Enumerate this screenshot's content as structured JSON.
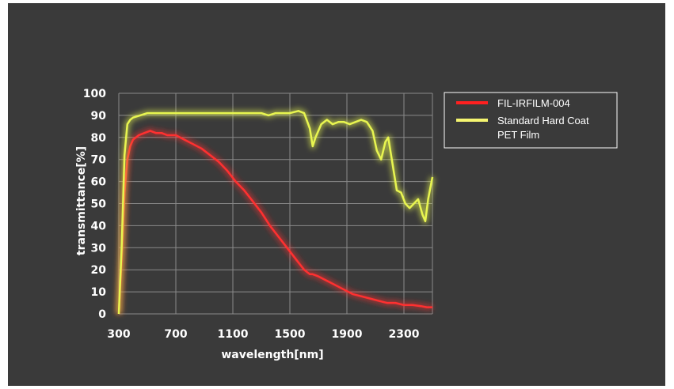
{
  "chart_data": {
    "type": "line",
    "title": "",
    "xlabel": "wavelength[nm]",
    "ylabel": "transmittance[%]",
    "xlim": [
      300,
      2500
    ],
    "ylim": [
      0,
      100
    ],
    "xticks": [
      300,
      700,
      1100,
      1500,
      1900,
      2300
    ],
    "yticks": [
      0,
      10,
      20,
      30,
      40,
      50,
      60,
      70,
      80,
      90,
      100
    ],
    "grid": true,
    "legend_position": "right",
    "series": [
      {
        "name": "FIL-IRFILM-004",
        "color": "#ff3030",
        "x": [
          300,
          320,
          340,
          360,
          380,
          400,
          440,
          480,
          520,
          560,
          600,
          640,
          700,
          760,
          820,
          880,
          940,
          1000,
          1060,
          1120,
          1180,
          1240,
          1300,
          1360,
          1420,
          1480,
          1540,
          1600,
          1640,
          1660,
          1700,
          1760,
          1820,
          1880,
          1940,
          2000,
          2060,
          2120,
          2180,
          2240,
          2300,
          2360,
          2420,
          2460,
          2500
        ],
        "y": [
          0,
          25,
          55,
          70,
          76,
          79,
          81,
          82,
          83,
          82,
          82,
          81,
          81,
          79,
          77,
          75,
          72,
          69,
          65,
          60,
          56,
          51,
          46,
          40,
          35,
          30,
          25,
          20,
          18,
          18,
          17,
          15,
          13,
          11,
          9,
          8,
          7,
          6,
          5,
          5,
          4,
          4,
          3.5,
          3,
          3
        ]
      },
      {
        "name": "Standard Hard Coat PET Film",
        "color": "#e8f550",
        "x": [
          300,
          320,
          340,
          360,
          380,
          400,
          450,
          500,
          600,
          700,
          800,
          900,
          1000,
          1100,
          1200,
          1300,
          1350,
          1400,
          1450,
          1500,
          1560,
          1600,
          1640,
          1660,
          1680,
          1720,
          1760,
          1800,
          1840,
          1880,
          1920,
          1960,
          2000,
          2040,
          2080,
          2110,
          2140,
          2170,
          2190,
          2220,
          2250,
          2280,
          2310,
          2340,
          2370,
          2400,
          2430,
          2450,
          2470,
          2500
        ],
        "y": [
          0,
          30,
          72,
          86,
          88,
          89,
          90,
          91,
          91,
          91,
          91,
          91,
          91,
          91,
          91,
          91,
          90,
          91,
          91,
          91,
          92,
          91,
          84,
          76,
          80,
          86,
          88,
          86,
          87,
          87,
          86,
          87,
          88,
          87,
          83,
          74,
          70,
          78,
          80,
          68,
          56,
          55,
          50,
          48,
          50,
          52,
          45,
          42,
          52,
          62
        ]
      }
    ]
  }
}
